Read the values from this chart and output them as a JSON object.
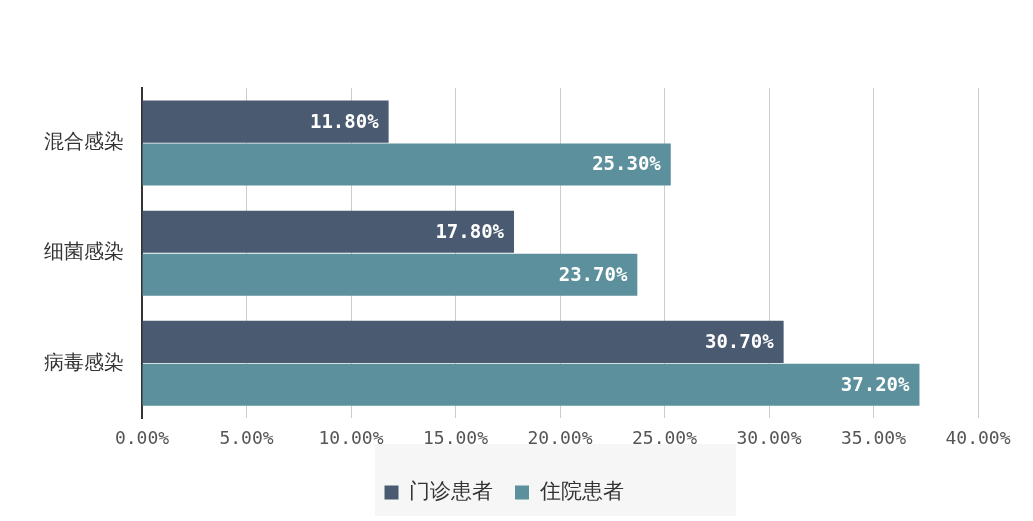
{
  "chart_data": {
    "type": "bar",
    "orientation": "horizontal",
    "categories": [
      "混合感染",
      "细菌感染",
      "病毒感染"
    ],
    "series": [
      {
        "name": "门诊患者",
        "color": "#4a5b71",
        "values": [
          11.8,
          17.8,
          30.7
        ],
        "value_labels": [
          "11.80%",
          "17.80%",
          "30.70%"
        ]
      },
      {
        "name": "住院患者",
        "color": "#5b909c",
        "values": [
          25.3,
          23.7,
          37.2
        ],
        "value_labels": [
          "25.30%",
          "23.70%",
          "37.20%"
        ]
      }
    ],
    "xlim": [
      0,
      40
    ],
    "xticks": [
      {
        "value": 0,
        "label": "0.00%"
      },
      {
        "value": 5,
        "label": "5.00%"
      },
      {
        "value": 10,
        "label": "10.00%"
      },
      {
        "value": 15,
        "label": "15.00%"
      },
      {
        "value": 20,
        "label": "20.00%"
      },
      {
        "value": 25,
        "label": "25.00%"
      },
      {
        "value": 30,
        "label": "30.00%"
      },
      {
        "value": 35,
        "label": "35.00%"
      },
      {
        "value": 40,
        "label": "40.00%"
      }
    ],
    "grid": "x",
    "legend": "bottom"
  }
}
